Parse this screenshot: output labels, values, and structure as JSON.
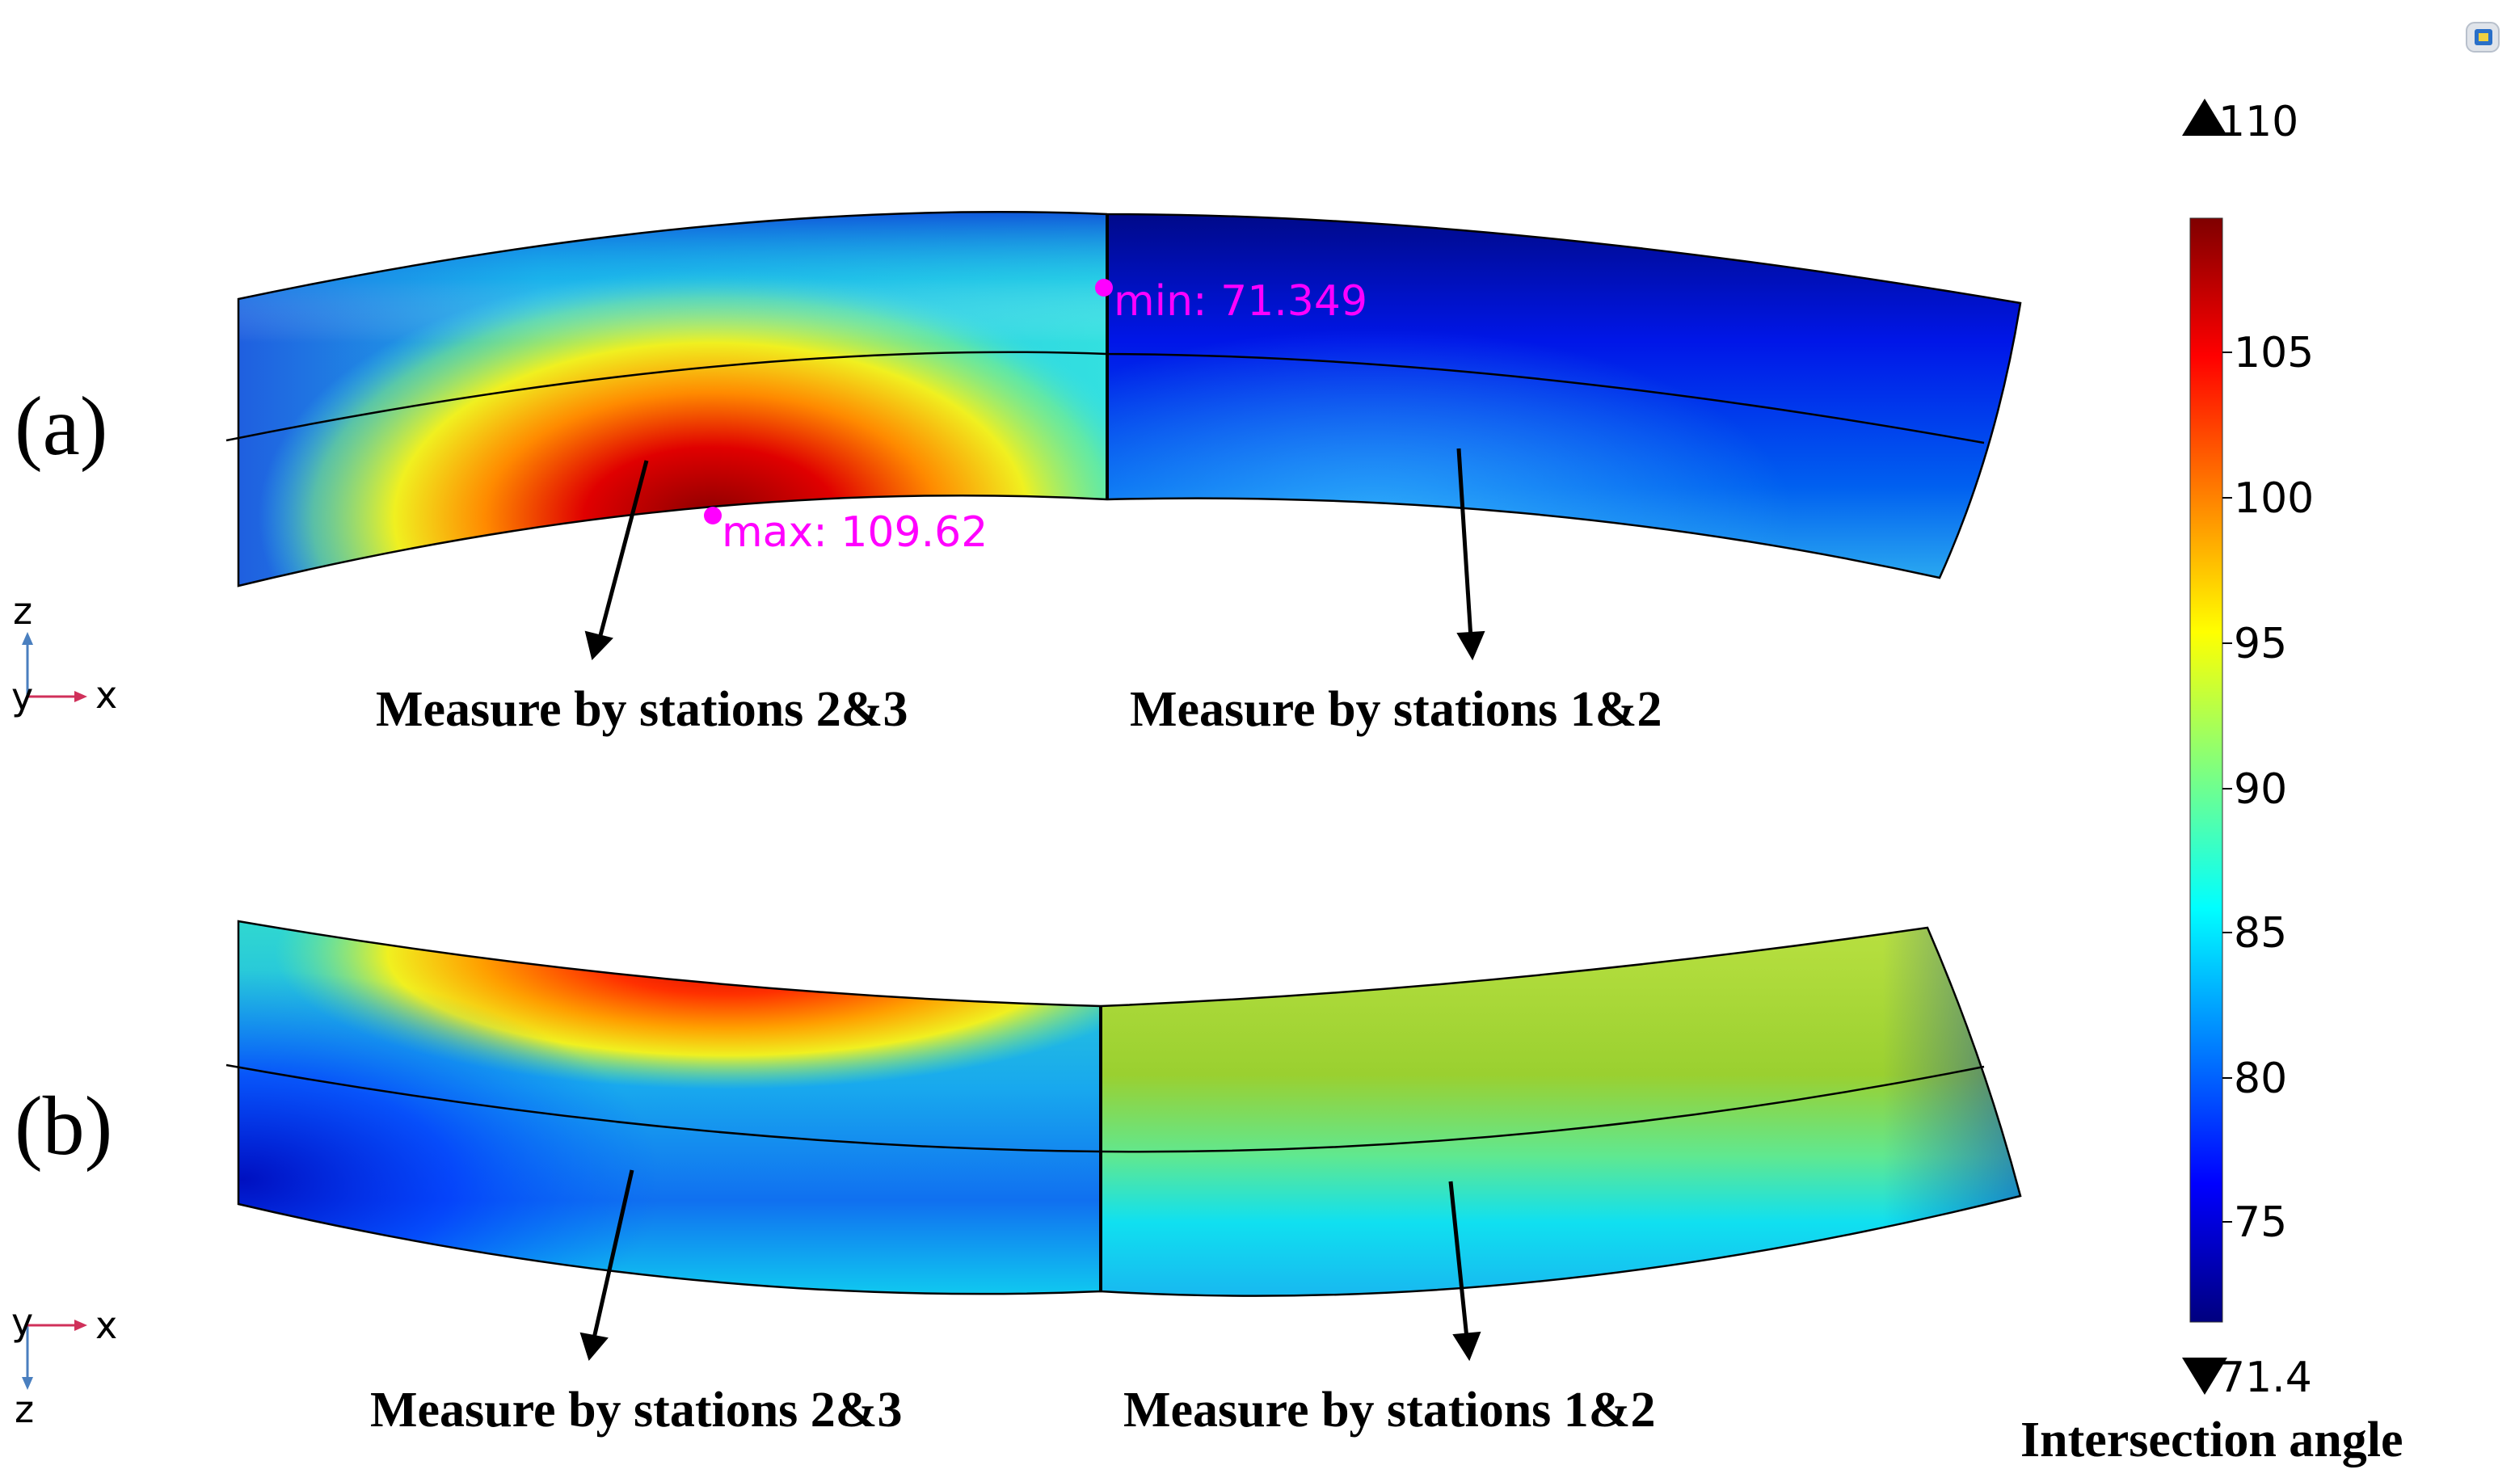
{
  "panels": [
    {
      "label": "(a)",
      "left_caption": "Measure by stations 2&3",
      "right_caption": "Measure by stations 1&2",
      "axes": {
        "vertical": "z",
        "horizontal": "x",
        "out_of_plane": "y"
      },
      "annotations": [
        {
          "text": "min: 71.349"
        },
        {
          "text": "max: 109.62"
        }
      ]
    },
    {
      "label": "(b)",
      "left_caption": "Measure by stations 2&3",
      "right_caption": "Measure by stations 1&2",
      "axes": {
        "vertical": "z",
        "horizontal": "x",
        "out_of_plane": "y"
      }
    }
  ],
  "colorbar": {
    "title": "Intersection angle",
    "max_label": "110",
    "min_label": "71.4",
    "ticks": [
      "105",
      "100",
      "95",
      "90",
      "85",
      "80",
      "75"
    ],
    "range": [
      71.4,
      110
    ],
    "colormap": [
      "#00007f",
      "#0000ff",
      "#007fff",
      "#00ffff",
      "#7fff7f",
      "#ffff00",
      "#ff7f00",
      "#ff0000",
      "#7f0000"
    ]
  },
  "colors": {
    "annotation": "#ff00ff",
    "axis_z": "#4a7fbf",
    "axis_x": "#d0305a"
  }
}
